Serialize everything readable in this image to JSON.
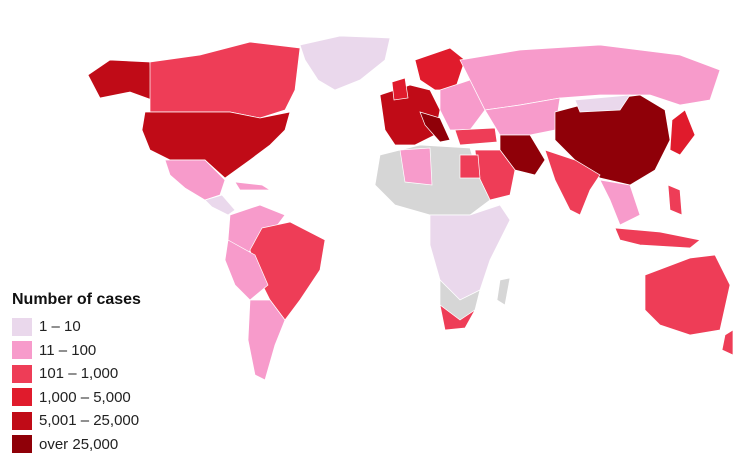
{
  "legend": {
    "title": "Number of cases",
    "items": [
      {
        "label": "1 – 10",
        "color": "#ead8ec"
      },
      {
        "label": "11 – 100",
        "color": "#f79bcb"
      },
      {
        "label": "101 – 1,000",
        "color": "#ee3d57"
      },
      {
        "label": "1,000 – 5,000",
        "color": "#e01b2c"
      },
      {
        "label": "5,001 – 25,000",
        "color": "#c00b17"
      },
      {
        "label": "over 25,000",
        "color": "#8f0008"
      }
    ],
    "no_data_color": "#d6d6d6"
  }
}
